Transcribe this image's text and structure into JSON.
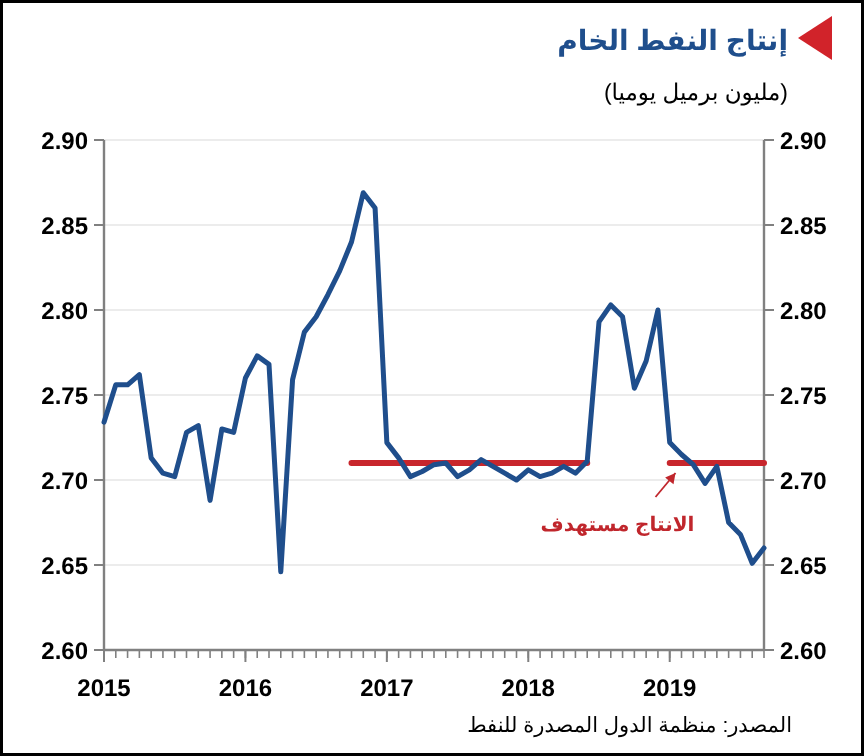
{
  "chart_data": {
    "type": "line",
    "title": "إنتاج النفط الخام",
    "subtitle": "(مليون برميل يوميا)",
    "x": [
      "2015-01",
      "2015-02",
      "2015-03",
      "2015-04",
      "2015-05",
      "2015-06",
      "2015-07",
      "2015-08",
      "2015-09",
      "2015-10",
      "2015-11",
      "2015-12",
      "2016-01",
      "2016-02",
      "2016-03",
      "2016-04",
      "2016-05",
      "2016-06",
      "2016-07",
      "2016-08",
      "2016-09",
      "2016-10",
      "2016-11",
      "2016-12",
      "2017-01",
      "2017-02",
      "2017-03",
      "2017-04",
      "2017-05",
      "2017-06",
      "2017-07",
      "2017-08",
      "2017-09",
      "2017-10",
      "2017-11",
      "2017-12",
      "2018-01",
      "2018-02",
      "2018-03",
      "2018-04",
      "2018-05",
      "2018-06",
      "2018-07",
      "2018-08",
      "2018-09",
      "2018-10",
      "2018-11",
      "2018-12",
      "2019-01",
      "2019-02",
      "2019-03",
      "2019-04",
      "2019-05",
      "2019-06",
      "2019-07",
      "2019-08",
      "2019-09"
    ],
    "series": [
      {
        "color": "#1f4e8c",
        "values": [
          2.734,
          2.756,
          2.756,
          2.762,
          2.713,
          2.704,
          2.702,
          2.728,
          2.732,
          2.688,
          2.73,
          2.728,
          2.76,
          2.773,
          2.768,
          2.646,
          2.759,
          2.787,
          2.796,
          2.809,
          2.823,
          2.84,
          2.869,
          2.86,
          2.722,
          2.713,
          2.702,
          2.705,
          2.709,
          2.71,
          2.702,
          2.706,
          2.712,
          2.708,
          2.704,
          2.7,
          2.706,
          2.702,
          2.704,
          2.708,
          2.704,
          2.711,
          2.793,
          2.803,
          2.796,
          2.754,
          2.77,
          2.8,
          2.722,
          2.715,
          2.709,
          2.698,
          2.708,
          2.675,
          2.668,
          2.651,
          2.66
        ]
      },
      {
        "color": "#c8262c",
        "x": [
          "2016-10",
          "2018-06"
        ],
        "values": [
          2.71,
          2.71
        ]
      },
      {
        "color": "#c8262c",
        "x": [
          "2019-01",
          "2019-09"
        ],
        "values": [
          2.71,
          2.71
        ]
      }
    ],
    "xlim": [
      "2015-01",
      "2019-09"
    ],
    "xticks": [
      {
        "value": "2015-01",
        "label": "2015"
      },
      {
        "value": "2016-01",
        "label": "2016"
      },
      {
        "value": "2017-01",
        "label": "2017"
      },
      {
        "value": "2018-01",
        "label": "2018"
      },
      {
        "value": "2019-01",
        "label": "2019"
      }
    ],
    "ylim": [
      2.6,
      2.9
    ],
    "yticks": [
      {
        "value": 2.6,
        "label": "2.60"
      },
      {
        "value": 2.65,
        "label": "2.65"
      },
      {
        "value": 2.7,
        "label": "2.70"
      },
      {
        "value": 2.75,
        "label": "2.75"
      },
      {
        "value": 2.8,
        "label": "2.80"
      },
      {
        "value": 2.85,
        "label": "2.85"
      },
      {
        "value": 2.9,
        "label": "2.90"
      }
    ],
    "y2lim": [
      2.6,
      2.9
    ],
    "y2ticks": [
      {
        "value": 2.6,
        "label": "2.60"
      },
      {
        "value": 2.65,
        "label": "2.65"
      },
      {
        "value": 2.7,
        "label": "2.70"
      },
      {
        "value": 2.75,
        "label": "2.75"
      },
      {
        "value": 2.8,
        "label": "2.80"
      },
      {
        "value": 2.85,
        "label": "2.85"
      },
      {
        "value": 2.9,
        "label": "2.90"
      }
    ],
    "grid": "y",
    "marker": "none",
    "line_style": "solid",
    "annotations": [
      {
        "text": "الانتاج مستهدف",
        "x": "2019-02",
        "y": 2.71
      },
      "المصدر: منظمة الدول المصدرة للنفط"
    ]
  }
}
